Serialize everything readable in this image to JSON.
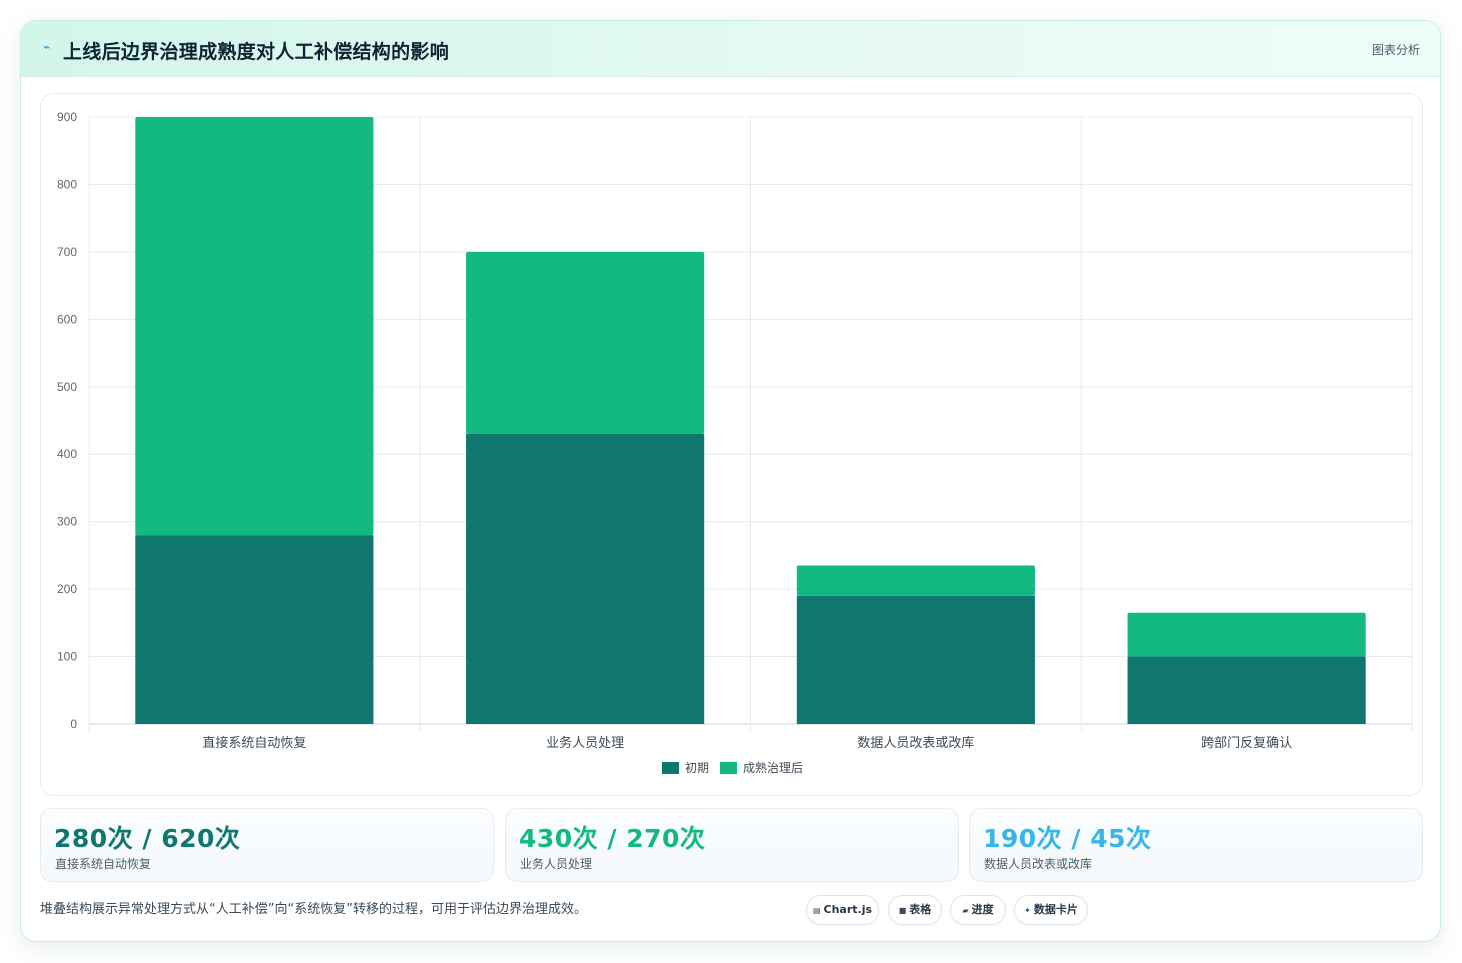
{
  "header": {
    "title": "上线后边界治理成熟度对人工补偿结构的影响",
    "tag": "图表分析",
    "icon": "pulse-icon"
  },
  "chart_data": {
    "type": "bar",
    "stacked": true,
    "categories": [
      "直接系统自动恢复",
      "业务人员处理",
      "数据人员改表或改库",
      "跨部门反复确认"
    ],
    "series": [
      {
        "name": "初期",
        "values": [
          280,
          430,
          190,
          100
        ],
        "color": "#10776f"
      },
      {
        "name": "成熟治理后",
        "values": [
          620,
          270,
          45,
          65
        ],
        "color": "#12b981"
      }
    ],
    "ylim": [
      0,
      900
    ],
    "yticks": [
      0,
      100,
      200,
      300,
      400,
      500,
      600,
      700,
      800,
      900
    ],
    "grid": true,
    "legend": "bottom"
  },
  "stats": [
    {
      "value": "280次 / 620次",
      "label": "直接系统自动恢复",
      "color": "#10776f"
    },
    {
      "value": "430次 / 270次",
      "label": "业务人员处理",
      "color": "#12b981"
    },
    {
      "value": "190次 / 45次",
      "label": "数据人员改表或改库",
      "color": "#38b6e8"
    }
  ],
  "footnote": "堆叠结构展示异常处理方式从“人工补偿”向“系统恢复”转移的过程，可用于评估边界治理成效。",
  "chips": [
    {
      "label": "Chart.js",
      "icon": "chart-icon"
    },
    {
      "label": "表格",
      "icon": "table-icon"
    },
    {
      "label": "进度",
      "icon": "progress-icon"
    },
    {
      "label": "数据卡片",
      "icon": "sparkle-icon"
    }
  ]
}
